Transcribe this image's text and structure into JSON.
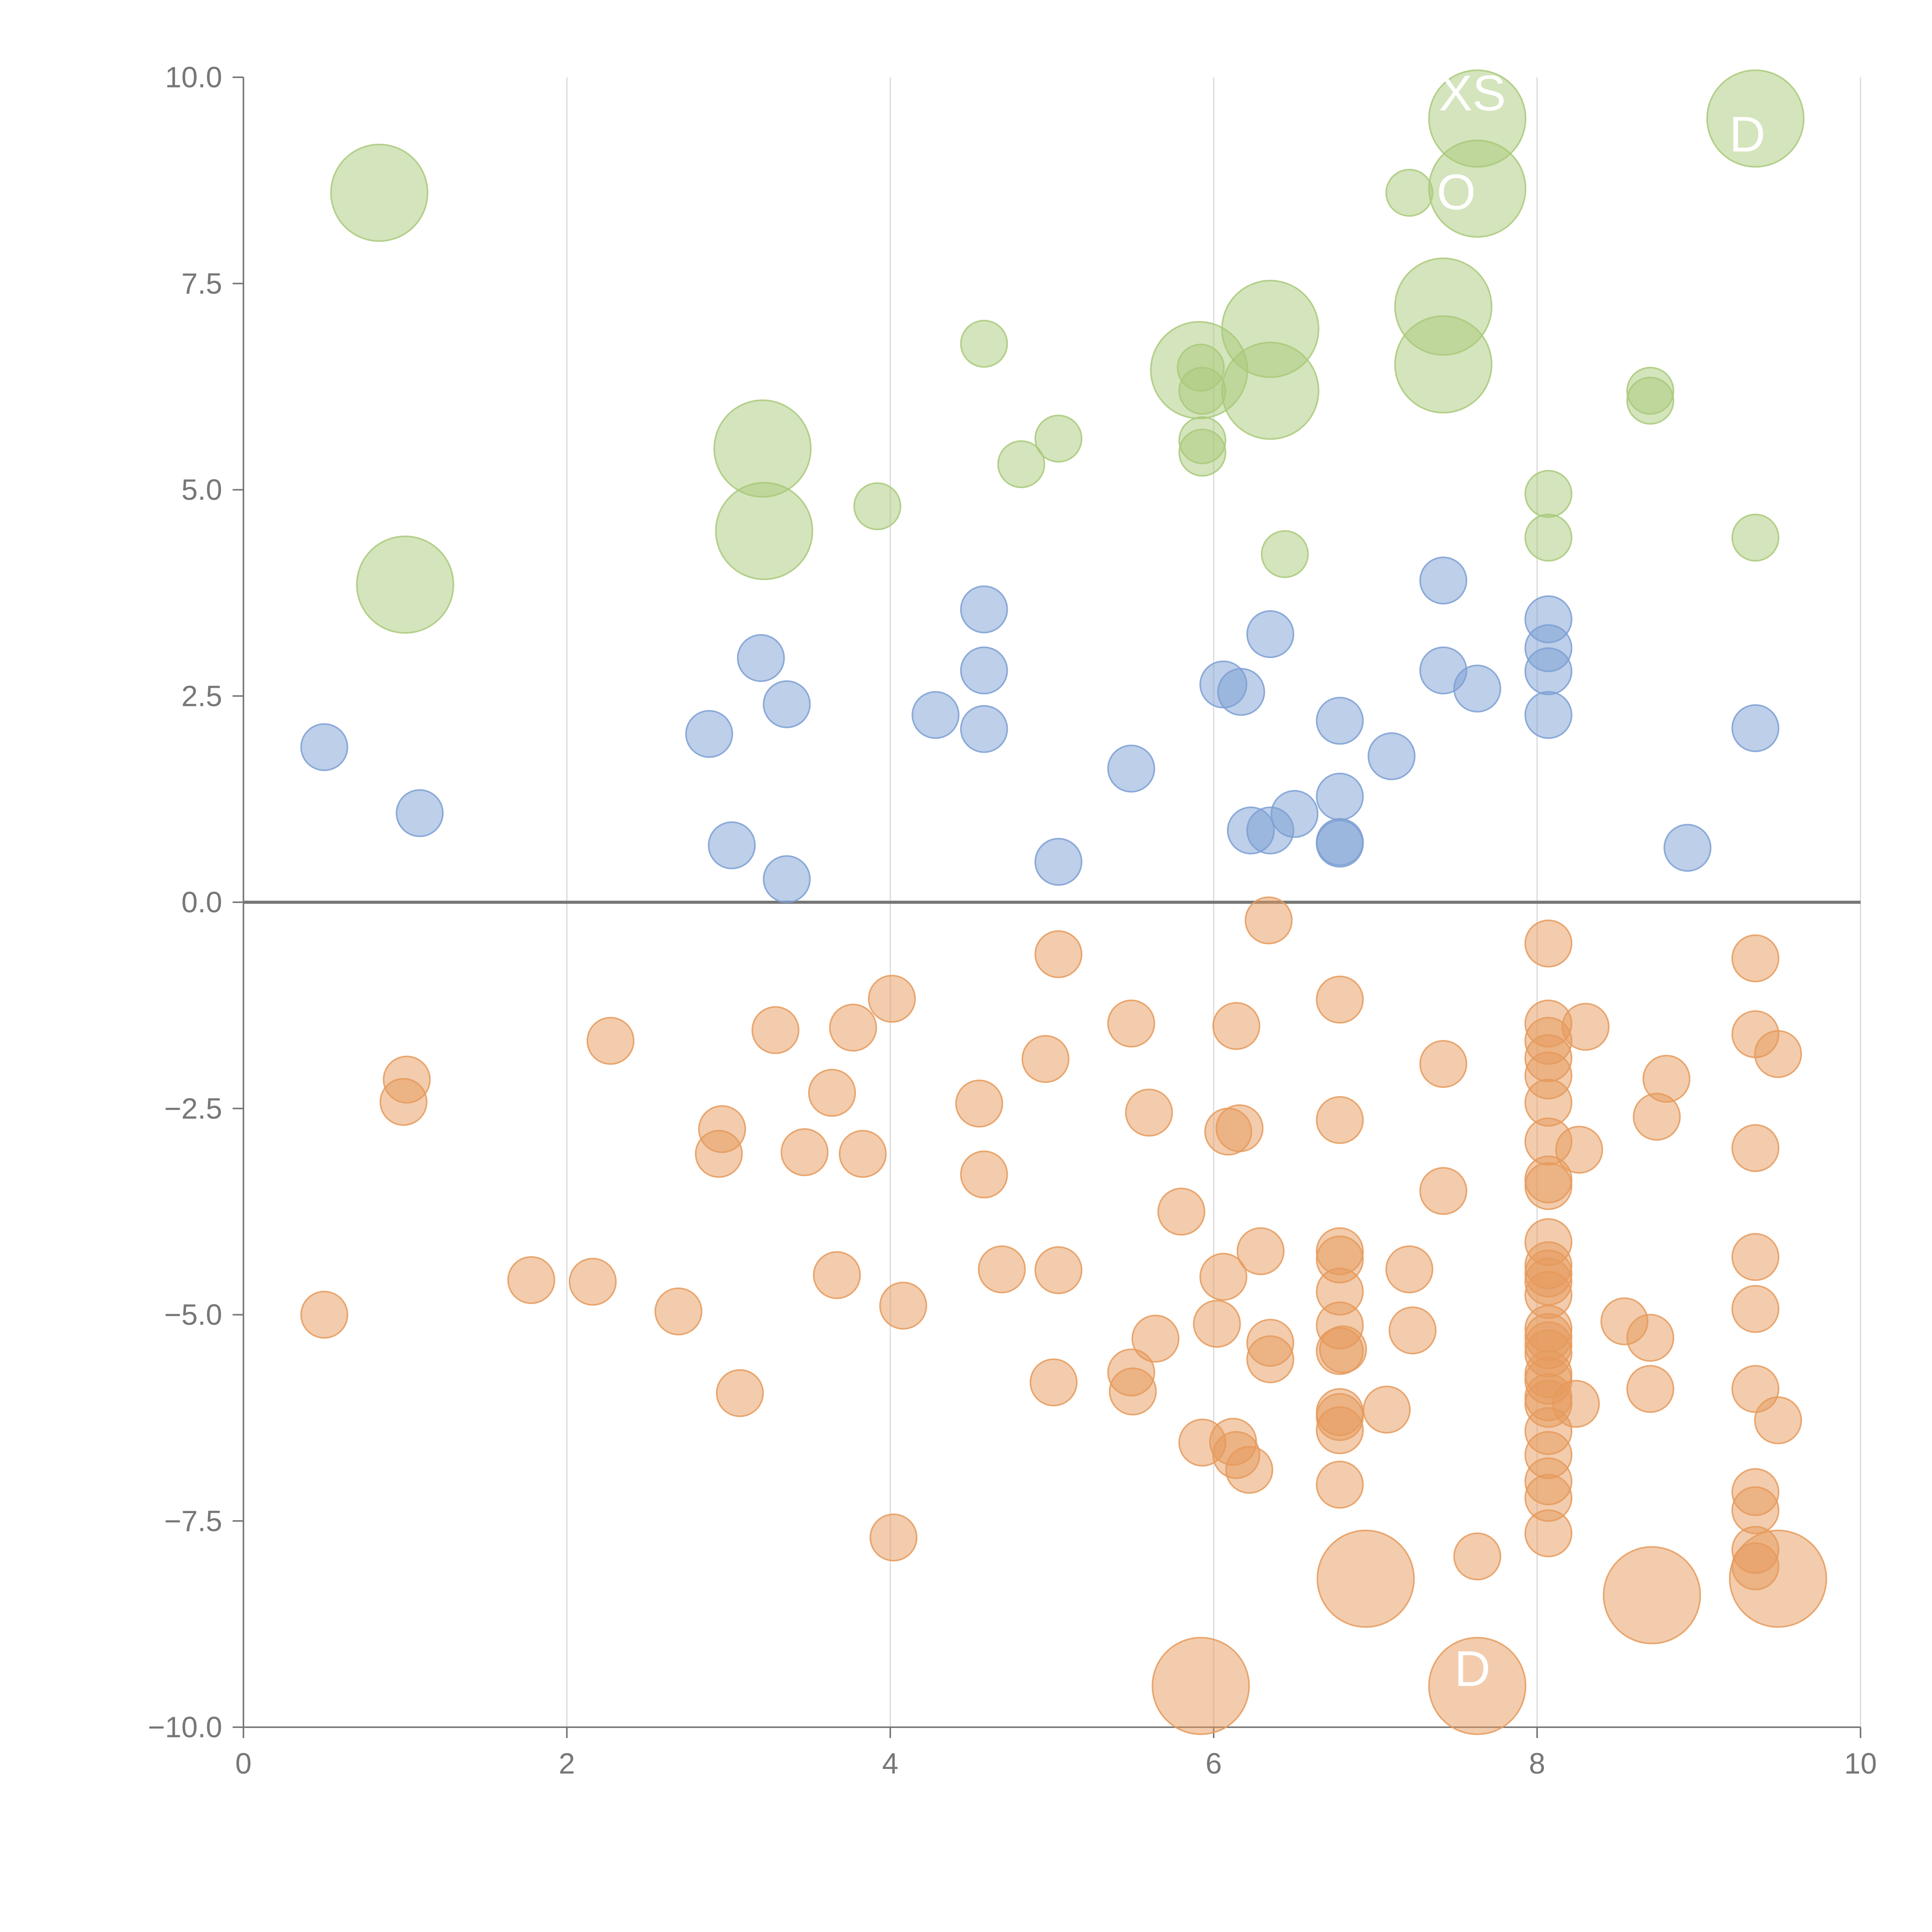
{
  "chart_data": {
    "type": "scatter",
    "title": "",
    "xlabel": "",
    "ylabel": "",
    "xlim": [
      0,
      10
    ],
    "ylim": [
      -10,
      10
    ],
    "x_ticks": [
      0,
      2,
      4,
      6,
      8,
      10
    ],
    "x_tick_labels": [
      "0",
      "2",
      "4",
      "6",
      "8",
      "10"
    ],
    "y_ticks": [
      10,
      7.5,
      5,
      2.5,
      0,
      -2.5,
      -5,
      -7.5,
      -10
    ],
    "y_tick_labels": [
      "10.0",
      "7.5",
      "5.0",
      "2.5",
      "0.0",
      "−2.5",
      "−5.0",
      "−7.5",
      "−10.0"
    ],
    "grid": "vertical",
    "zero_line": true,
    "colors": {
      "green": "#a9c97a",
      "blue": "#7c9fd3",
      "orange": "#e69a5c",
      "axis": "#777777",
      "zero_line": "#777777",
      "grid": "#d9d9d9"
    },
    "overlay_labels": [
      {
        "text": "XS",
        "x": 7.6,
        "y": 9.6
      },
      {
        "text": "D",
        "x": 9.3,
        "y": 9.1
      },
      {
        "text": "O",
        "x": 7.5,
        "y": 8.4
      },
      {
        "text": "D",
        "x": 7.6,
        "y": -9.5
      }
    ],
    "series": [
      {
        "color": "green",
        "points": [
          {
            "x": 0.84,
            "y": 8.6,
            "size": "large"
          },
          {
            "x": 1.0,
            "y": 3.85,
            "size": "large"
          },
          {
            "x": 3.21,
            "y": 5.5,
            "size": "large"
          },
          {
            "x": 3.22,
            "y": 4.5,
            "size": "large"
          },
          {
            "x": 3.92,
            "y": 4.8,
            "size": "small"
          },
          {
            "x": 4.58,
            "y": 6.77,
            "size": "small"
          },
          {
            "x": 4.81,
            "y": 5.31,
            "size": "small"
          },
          {
            "x": 5.04,
            "y": 5.62,
            "size": "small"
          },
          {
            "x": 5.91,
            "y": 6.45,
            "size": "large"
          },
          {
            "x": 5.92,
            "y": 6.48,
            "size": "small"
          },
          {
            "x": 5.93,
            "y": 6.2,
            "size": "small"
          },
          {
            "x": 5.93,
            "y": 5.6,
            "size": "small"
          },
          {
            "x": 5.93,
            "y": 5.45,
            "size": "small"
          },
          {
            "x": 6.35,
            "y": 6.95,
            "size": "large"
          },
          {
            "x": 6.35,
            "y": 6.2,
            "size": "large"
          },
          {
            "x": 6.44,
            "y": 4.22,
            "size": "small"
          },
          {
            "x": 7.21,
            "y": 8.6,
            "size": "small"
          },
          {
            "x": 7.42,
            "y": 7.22,
            "size": "large"
          },
          {
            "x": 7.42,
            "y": 6.52,
            "size": "large"
          },
          {
            "x": 7.63,
            "y": 9.5,
            "size": "large"
          },
          {
            "x": 7.63,
            "y": 8.65,
            "size": "large"
          },
          {
            "x": 8.07,
            "y": 4.95,
            "size": "small"
          },
          {
            "x": 8.07,
            "y": 4.42,
            "size": "small"
          },
          {
            "x": 8.7,
            "y": 6.2,
            "size": "small"
          },
          {
            "x": 8.7,
            "y": 6.08,
            "size": "small"
          },
          {
            "x": 9.35,
            "y": 9.5,
            "size": "large"
          },
          {
            "x": 9.35,
            "y": 4.42,
            "size": "small"
          }
        ]
      },
      {
        "color": "blue",
        "points": [
          {
            "x": 0.5,
            "y": 1.88
          },
          {
            "x": 1.09,
            "y": 1.08
          },
          {
            "x": 2.88,
            "y": 2.04
          },
          {
            "x": 3.02,
            "y": 0.69
          },
          {
            "x": 3.2,
            "y": 2.96
          },
          {
            "x": 3.36,
            "y": 2.4
          },
          {
            "x": 3.36,
            "y": 0.28
          },
          {
            "x": 4.28,
            "y": 2.27
          },
          {
            "x": 4.58,
            "y": 3.55
          },
          {
            "x": 4.58,
            "y": 2.81
          },
          {
            "x": 4.58,
            "y": 2.1
          },
          {
            "x": 5.04,
            "y": 0.49
          },
          {
            "x": 5.49,
            "y": 1.62
          },
          {
            "x": 6.06,
            "y": 2.64
          },
          {
            "x": 6.17,
            "y": 2.55
          },
          {
            "x": 6.23,
            "y": 0.87
          },
          {
            "x": 6.35,
            "y": 3.25
          },
          {
            "x": 6.35,
            "y": 0.87
          },
          {
            "x": 6.5,
            "y": 1.07
          },
          {
            "x": 6.78,
            "y": 2.2
          },
          {
            "x": 6.78,
            "y": 1.28
          },
          {
            "x": 6.78,
            "y": 0.73
          },
          {
            "x": 6.78,
            "y": 0.71
          },
          {
            "x": 7.1,
            "y": 1.77
          },
          {
            "x": 7.42,
            "y": 3.9
          },
          {
            "x": 7.42,
            "y": 2.81
          },
          {
            "x": 7.63,
            "y": 2.59
          },
          {
            "x": 8.07,
            "y": 3.43
          },
          {
            "x": 8.07,
            "y": 3.08
          },
          {
            "x": 8.07,
            "y": 2.8
          },
          {
            "x": 8.07,
            "y": 2.27
          },
          {
            "x": 8.93,
            "y": 0.66
          },
          {
            "x": 9.35,
            "y": 2.11
          }
        ]
      },
      {
        "color": "orange",
        "points": [
          {
            "x": 0.5,
            "y": -5.0,
            "size": "small"
          },
          {
            "x": 0.99,
            "y": -2.42,
            "size": "small"
          },
          {
            "x": 1.01,
            "y": -2.15,
            "size": "small"
          },
          {
            "x": 1.78,
            "y": -4.58,
            "size": "small"
          },
          {
            "x": 2.16,
            "y": -4.6,
            "size": "small"
          },
          {
            "x": 2.27,
            "y": -1.68,
            "size": "small"
          },
          {
            "x": 2.69,
            "y": -4.96,
            "size": "small"
          },
          {
            "x": 2.94,
            "y": -3.05,
            "size": "small"
          },
          {
            "x": 2.96,
            "y": -2.75,
            "size": "small"
          },
          {
            "x": 3.07,
            "y": -5.95,
            "size": "small"
          },
          {
            "x": 3.29,
            "y": -1.55,
            "size": "small"
          },
          {
            "x": 3.47,
            "y": -3.03,
            "size": "small"
          },
          {
            "x": 3.64,
            "y": -2.31,
            "size": "small"
          },
          {
            "x": 3.67,
            "y": -4.52,
            "size": "small"
          },
          {
            "x": 3.77,
            "y": -1.52,
            "size": "small"
          },
          {
            "x": 3.83,
            "y": -3.05,
            "size": "small"
          },
          {
            "x": 4.01,
            "y": -1.17,
            "size": "small"
          },
          {
            "x": 4.02,
            "y": -7.7,
            "size": "small"
          },
          {
            "x": 4.08,
            "y": -4.89,
            "size": "small"
          },
          {
            "x": 4.55,
            "y": -2.44,
            "size": "small"
          },
          {
            "x": 4.58,
            "y": -3.3,
            "size": "small"
          },
          {
            "x": 4.69,
            "y": -4.45,
            "size": "small"
          },
          {
            "x": 4.96,
            "y": -1.9,
            "size": "small"
          },
          {
            "x": 5.01,
            "y": -5.82,
            "size": "small"
          },
          {
            "x": 5.04,
            "y": -0.63,
            "size": "small"
          },
          {
            "x": 5.04,
            "y": -4.46,
            "size": "small"
          },
          {
            "x": 5.49,
            "y": -1.47,
            "size": "small"
          },
          {
            "x": 5.49,
            "y": -5.7,
            "size": "small"
          },
          {
            "x": 5.5,
            "y": -5.93,
            "size": "small"
          },
          {
            "x": 5.6,
            "y": -2.55,
            "size": "small"
          },
          {
            "x": 5.64,
            "y": -5.29,
            "size": "small"
          },
          {
            "x": 5.8,
            "y": -3.75,
            "size": "small"
          },
          {
            "x": 5.92,
            "y": -9.5,
            "size": "large"
          },
          {
            "x": 5.93,
            "y": -6.55,
            "size": "small"
          },
          {
            "x": 6.02,
            "y": -5.11,
            "size": "small"
          },
          {
            "x": 6.06,
            "y": -4.54,
            "size": "small"
          },
          {
            "x": 6.09,
            "y": -2.78,
            "size": "small"
          },
          {
            "x": 6.12,
            "y": -6.54,
            "size": "small"
          },
          {
            "x": 6.14,
            "y": -1.5,
            "size": "small"
          },
          {
            "x": 6.14,
            "y": -6.7,
            "size": "small"
          },
          {
            "x": 6.16,
            "y": -2.74,
            "size": "small"
          },
          {
            "x": 6.22,
            "y": -6.88,
            "size": "small"
          },
          {
            "x": 6.29,
            "y": -4.23,
            "size": "small"
          },
          {
            "x": 6.34,
            "y": -0.22,
            "size": "small"
          },
          {
            "x": 6.35,
            "y": -5.34,
            "size": "small"
          },
          {
            "x": 6.35,
            "y": -5.54,
            "size": "small"
          },
          {
            "x": 6.78,
            "y": -1.18,
            "size": "small"
          },
          {
            "x": 6.78,
            "y": -2.64,
            "size": "small"
          },
          {
            "x": 6.78,
            "y": -4.23,
            "size": "small"
          },
          {
            "x": 6.78,
            "y": -4.33,
            "size": "small"
          },
          {
            "x": 6.78,
            "y": -4.72,
            "size": "small"
          },
          {
            "x": 6.78,
            "y": -5.13,
            "size": "small"
          },
          {
            "x": 6.78,
            "y": -5.44,
            "size": "small"
          },
          {
            "x": 6.8,
            "y": -5.42,
            "size": "small"
          },
          {
            "x": 6.78,
            "y": -6.18,
            "size": "small"
          },
          {
            "x": 6.78,
            "y": -6.24,
            "size": "small"
          },
          {
            "x": 6.78,
            "y": -6.4,
            "size": "small"
          },
          {
            "x": 6.78,
            "y": -7.06,
            "size": "small"
          },
          {
            "x": 6.94,
            "y": -8.2,
            "size": "large"
          },
          {
            "x": 7.07,
            "y": -6.15,
            "size": "small"
          },
          {
            "x": 7.21,
            "y": -4.45,
            "size": "small"
          },
          {
            "x": 7.23,
            "y": -5.19,
            "size": "small"
          },
          {
            "x": 7.42,
            "y": -1.96,
            "size": "small"
          },
          {
            "x": 7.42,
            "y": -3.5,
            "size": "small"
          },
          {
            "x": 7.63,
            "y": -7.93,
            "size": "small"
          },
          {
            "x": 7.63,
            "y": -9.5,
            "size": "large"
          },
          {
            "x": 8.07,
            "y": -0.5,
            "size": "small"
          },
          {
            "x": 8.07,
            "y": -1.47,
            "size": "small"
          },
          {
            "x": 8.07,
            "y": -1.68,
            "size": "small"
          },
          {
            "x": 8.07,
            "y": -1.89,
            "size": "small"
          },
          {
            "x": 8.07,
            "y": -2.1,
            "size": "small"
          },
          {
            "x": 8.07,
            "y": -2.43,
            "size": "small"
          },
          {
            "x": 8.07,
            "y": -2.9,
            "size": "small"
          },
          {
            "x": 8.07,
            "y": -3.36,
            "size": "small"
          },
          {
            "x": 8.07,
            "y": -3.44,
            "size": "small"
          },
          {
            "x": 8.07,
            "y": -4.12,
            "size": "small"
          },
          {
            "x": 8.07,
            "y": -4.4,
            "size": "small"
          },
          {
            "x": 8.07,
            "y": -4.5,
            "size": "small"
          },
          {
            "x": 8.07,
            "y": -4.6,
            "size": "small"
          },
          {
            "x": 8.07,
            "y": -4.76,
            "size": "small"
          },
          {
            "x": 8.07,
            "y": -5.17,
            "size": "small"
          },
          {
            "x": 8.07,
            "y": -5.27,
            "size": "small"
          },
          {
            "x": 8.07,
            "y": -5.37,
            "size": "small"
          },
          {
            "x": 8.07,
            "y": -5.47,
            "size": "small"
          },
          {
            "x": 8.07,
            "y": -5.72,
            "size": "small"
          },
          {
            "x": 8.07,
            "y": -5.8,
            "size": "small"
          },
          {
            "x": 8.07,
            "y": -6.0,
            "size": "small"
          },
          {
            "x": 8.07,
            "y": -6.08,
            "size": "small"
          },
          {
            "x": 8.07,
            "y": -6.41,
            "size": "small"
          },
          {
            "x": 8.07,
            "y": -6.7,
            "size": "small"
          },
          {
            "x": 8.07,
            "y": -7.02,
            "size": "small"
          },
          {
            "x": 8.07,
            "y": -7.22,
            "size": "small"
          },
          {
            "x": 8.07,
            "y": -7.65,
            "size": "small"
          },
          {
            "x": 8.24,
            "y": -6.08,
            "size": "small"
          },
          {
            "x": 8.26,
            "y": -3.0,
            "size": "small"
          },
          {
            "x": 8.3,
            "y": -1.51,
            "size": "small"
          },
          {
            "x": 8.54,
            "y": -5.08,
            "size": "small"
          },
          {
            "x": 8.7,
            "y": -5.28,
            "size": "small"
          },
          {
            "x": 8.7,
            "y": -5.9,
            "size": "small"
          },
          {
            "x": 8.71,
            "y": -8.4,
            "size": "large"
          },
          {
            "x": 8.74,
            "y": -2.6,
            "size": "small"
          },
          {
            "x": 8.8,
            "y": -2.14,
            "size": "small"
          },
          {
            "x": 9.35,
            "y": -0.68,
            "size": "small"
          },
          {
            "x": 9.35,
            "y": -1.6,
            "size": "small"
          },
          {
            "x": 9.35,
            "y": -2.98,
            "size": "small"
          },
          {
            "x": 9.35,
            "y": -4.3,
            "size": "small"
          },
          {
            "x": 9.35,
            "y": -4.93,
            "size": "small"
          },
          {
            "x": 9.35,
            "y": -5.9,
            "size": "small"
          },
          {
            "x": 9.35,
            "y": -7.15,
            "size": "small"
          },
          {
            "x": 9.35,
            "y": -7.37,
            "size": "small"
          },
          {
            "x": 9.35,
            "y": -7.85,
            "size": "small"
          },
          {
            "x": 9.35,
            "y": -8.05,
            "size": "small"
          },
          {
            "x": 9.49,
            "y": -1.84,
            "size": "small"
          },
          {
            "x": 9.49,
            "y": -6.28,
            "size": "small"
          },
          {
            "x": 9.49,
            "y": -8.2,
            "size": "large"
          }
        ]
      }
    ]
  }
}
